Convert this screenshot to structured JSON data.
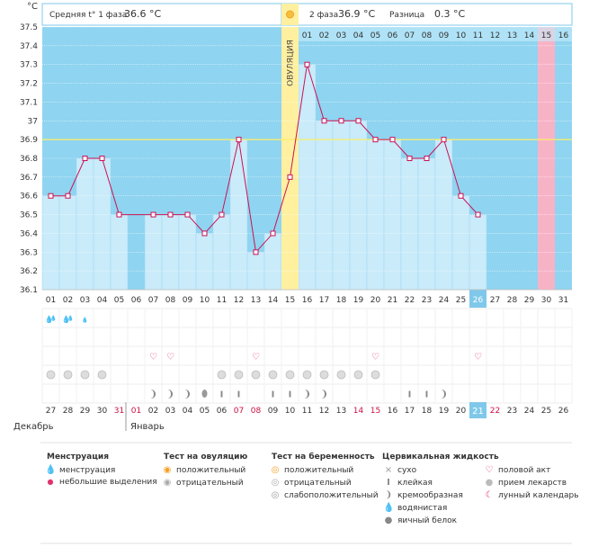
{
  "chart_data": {
    "type": "line",
    "title": "",
    "ylabel": "°C",
    "ylim": [
      36.1,
      37.5
    ],
    "yticks": [
      "37.5",
      "37.4",
      "37.3",
      "37.2",
      "37.1",
      "37",
      "36.9",
      "36.8",
      "36.7",
      "36.6",
      "36.5",
      "36.4",
      "36.3",
      "36.2",
      "36.1"
    ],
    "cover_line": 36.9,
    "ovulation_day": 15,
    "ovulation_label": "ОВУЛЯЦИЯ",
    "current_day": 26,
    "expected_period_day": 30,
    "cycle_days": [
      "01",
      "02",
      "03",
      "04",
      "05",
      "06",
      "07",
      "08",
      "09",
      "10",
      "11",
      "12",
      "13",
      "14",
      "15",
      "16",
      "17",
      "18",
      "19",
      "20",
      "21",
      "22",
      "23",
      "24",
      "25",
      "26",
      "27",
      "28",
      "29",
      "30",
      "31"
    ],
    "phase2_days": [
      "01",
      "02",
      "03",
      "04",
      "05",
      "06",
      "07",
      "08",
      "09",
      "10",
      "11",
      "12",
      "13",
      "14",
      "15",
      "16"
    ],
    "temperatures": [
      36.6,
      36.6,
      36.8,
      36.8,
      36.5,
      null,
      36.5,
      36.5,
      36.5,
      36.4,
      36.5,
      36.9,
      36.3,
      36.4,
      36.7,
      37.3,
      37.0,
      37.0,
      37.0,
      36.9,
      36.9,
      36.8,
      36.8,
      36.9,
      36.6,
      36.5,
      null,
      null,
      null,
      null,
      null
    ],
    "calendar_dates": [
      "27",
      "28",
      "29",
      "30",
      "31",
      "01",
      "02",
      "03",
      "04",
      "05",
      "06",
      "07",
      "08",
      "09",
      "10",
      "11",
      "12",
      "13",
      "14",
      "15",
      "16",
      "17",
      "18",
      "19",
      "20",
      "21",
      "22",
      "23",
      "24",
      "25",
      "26"
    ],
    "red_date_indices": [
      4,
      5,
      11,
      12,
      18,
      19,
      26
    ],
    "month_labels": [
      "Декабрь",
      "Январь"
    ],
    "header": {
      "phase1_label": "Средняя t° 1 фаза",
      "phase1_value": "36.6 °C",
      "phase2_label": "2 фаза",
      "phase2_value": "36.9 °C",
      "diff_label": "Разница",
      "diff_value": "0.3 °C"
    },
    "marks": {
      "menstruation_heavy_days": [
        1,
        2
      ],
      "menstruation_light_days": [
        3
      ],
      "sex_days": [
        7,
        8,
        13,
        20,
        26
      ],
      "medication_days": [
        1,
        2,
        3,
        4,
        11,
        12,
        13,
        14,
        15,
        16,
        17,
        18,
        19,
        20
      ],
      "cervical_fluid": [
        {
          "day": 7,
          "type": "creamy"
        },
        {
          "day": 8,
          "type": "creamy"
        },
        {
          "day": 9,
          "type": "creamy"
        },
        {
          "day": 10,
          "type": "egg-white"
        },
        {
          "day": 11,
          "type": "sticky"
        },
        {
          "day": 12,
          "type": "sticky"
        },
        {
          "day": 14,
          "type": "sticky"
        },
        {
          "day": 15,
          "type": "sticky"
        },
        {
          "day": 16,
          "type": "creamy"
        },
        {
          "day": 17,
          "type": "creamy"
        },
        {
          "day": 22,
          "type": "sticky"
        },
        {
          "day": 23,
          "type": "sticky"
        },
        {
          "day": 24,
          "type": "creamy"
        }
      ]
    }
  },
  "legend": {
    "menstruation": {
      "title": "Менструация",
      "items": [
        "менструация",
        "небольшие выделения"
      ]
    },
    "ovulation_test": {
      "title": "Тест на овуляцию",
      "items": [
        "положительный",
        "отрицательный"
      ]
    },
    "pregnancy_test": {
      "title": "Тест на беременность",
      "items": [
        "положительный",
        "отрицательный",
        "слабоположительный"
      ]
    },
    "cervical": {
      "title": "Цервикальная жидкость",
      "items": [
        "сухо",
        "клейкая",
        "кремообразная",
        "водянистая",
        "яичный белок"
      ]
    },
    "other": {
      "items": [
        "половой акт",
        "прием лекарств",
        "лунный календарь"
      ]
    }
  },
  "colors": {
    "sky": "#8fd4f0",
    "bar": "#c9ebfa",
    "ovulation": "#fff0a0",
    "line": "#cc1155",
    "period": "#f7b3c6",
    "cover": "#ffee66",
    "today": "#7fc8ea"
  }
}
